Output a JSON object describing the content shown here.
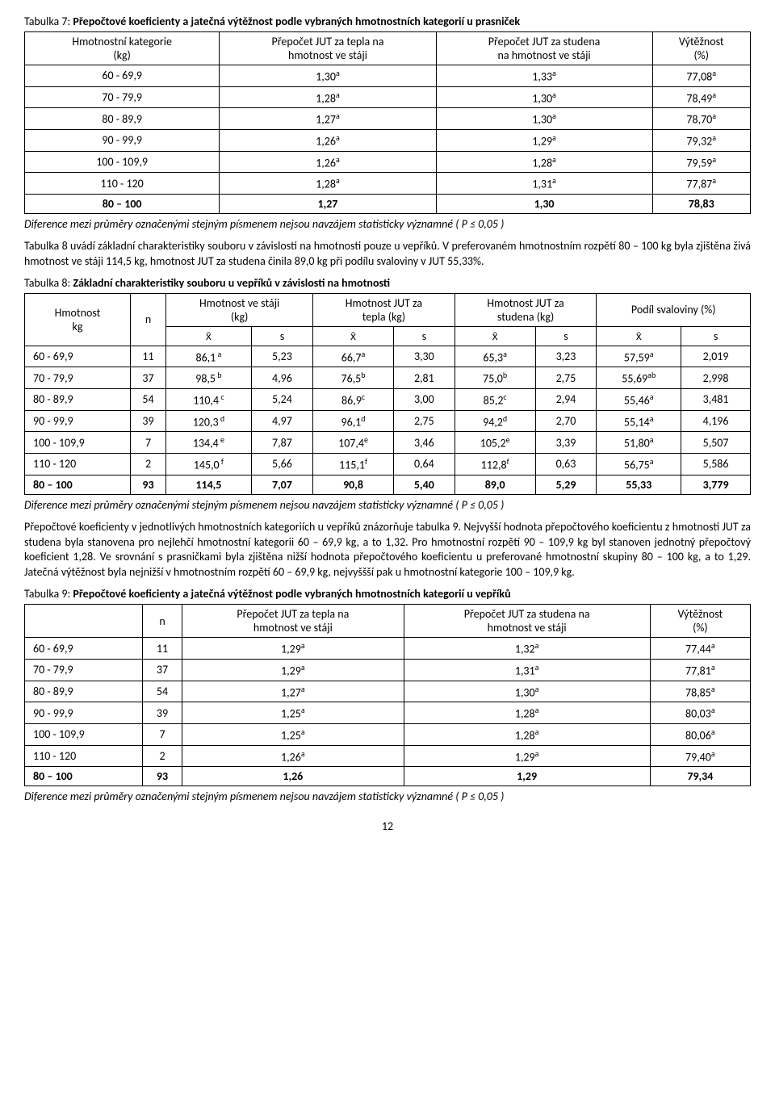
{
  "table7": {
    "title_prefix": "Tabulka 7: ",
    "title": "Přepočtové koeficienty a jatečná výtěžnost podle vybraných hmotnostních kategorií u prasniček",
    "headers": {
      "col1a": "Hmotnostní kategorie",
      "col1b": "(kg)",
      "col2a": "Přepočet JUT za tepla na",
      "col2b": "hmotnost ve stáji",
      "col3a": "Přepočet JUT za studena",
      "col3b": "na hmotnost ve stáji",
      "col4a": "Výtěžnost",
      "col4b": "(%)"
    },
    "rows": [
      {
        "cat": "60 - 69,9",
        "v1": "1,30",
        "s1": "a",
        "v2": "1,33",
        "s2": "a",
        "v3": "77,08",
        "s3": "a"
      },
      {
        "cat": "70 - 79,9",
        "v1": "1,28",
        "s1": "a",
        "v2": "1,30",
        "s2": "a",
        "v3": "78,49",
        "s3": "a"
      },
      {
        "cat": "80 - 89,9",
        "v1": "1,27",
        "s1": "a",
        "v2": "1,30",
        "s2": "a",
        "v3": "78,70",
        "s3": "a"
      },
      {
        "cat": "90 - 99,9",
        "v1": "1,26",
        "s1": "a",
        "v2": "1,29",
        "s2": "a",
        "v3": "79,32",
        "s3": "a"
      },
      {
        "cat": "100 - 109,9",
        "v1": "1,26",
        "s1": "a",
        "v2": "1,28",
        "s2": "a",
        "v3": "79,59",
        "s3": "a"
      },
      {
        "cat": "110 - 120",
        "v1": "1,28",
        "s1": "a",
        "v2": "1,31",
        "s2": "a",
        "v3": "77,87",
        "s3": "a"
      }
    ],
    "summary": {
      "cat": "80 – 100",
      "v1": "1,27",
      "v2": "1,30",
      "v3": "78,83"
    }
  },
  "diff_note": "Diference mezi průměry označenými stejným písmenem nejsou navzájem statisticky významné ( P  ≤  0,05 )",
  "para1": "Tabulka 8 uvádí základní charakteristiky souboru v závislosti na hmotnosti pouze u vepříků. V preferovaném hmotnostním rozpětí 80 – 100 kg byla zjištěna živá hmotnost ve stáji 114,5 kg, hmotnost JUT za studena činila 89,0 kg při podílu svaloviny v JUT 55,33%.",
  "table8": {
    "title_prefix": "Tabulka 8: ",
    "title": "Základní charakteristiky souboru u vepříků v závislosti na hmotnosti",
    "headers": {
      "h1a": "Hmotnost",
      "h1b": "kg",
      "h2": "n",
      "h3a": "Hmotnost ve stáji",
      "h3b": "(kg)",
      "h4a": "Hmotnost JUT za",
      "h4b": "tepla (kg)",
      "h5a": "Hmotnost JUT za",
      "h5b": "studena (kg)",
      "h6": "Podíl svaloviny (%)",
      "xbar": "x̄",
      "s": "s"
    },
    "rows": [
      {
        "cat": "60 - 69,9",
        "n": "11",
        "x1": "86,1",
        "p1": "a",
        "s1": "5,23",
        "x2": "66,7",
        "p2": "a",
        "s2": "3,30",
        "x3": "65,3",
        "p3": "a",
        "s3": "3,23",
        "x4": "57,59",
        "p4": "a",
        "s4": "2,019"
      },
      {
        "cat": "70 - 79,9",
        "n": "37",
        "x1": "98,5",
        "p1": "b",
        "s1": "4,96",
        "x2": "76,5",
        "p2": "b",
        "s2": "2,81",
        "x3": "75,0",
        "p3": "b",
        "s3": "2,75",
        "x4": "55,69",
        "p4": "ab",
        "s4": "2,998"
      },
      {
        "cat": "80 - 89,9",
        "n": "54",
        "x1": "110,4",
        "p1": "c",
        "s1": "5,24",
        "x2": "86,9",
        "p2": "c",
        "s2": "3,00",
        "x3": "85,2",
        "p3": "c",
        "s3": "2,94",
        "x4": "55,46",
        "p4": "a",
        "s4": "3,481"
      },
      {
        "cat": "90 - 99,9",
        "n": "39",
        "x1": "120,3",
        "p1": "d",
        "s1": "4,97",
        "x2": "96,1",
        "p2": "d",
        "s2": "2,75",
        "x3": "94,2",
        "p3": "d",
        "s3": "2,70",
        "x4": "55,14",
        "p4": "a",
        "s4": "4,196"
      },
      {
        "cat": "100 - 109,9",
        "n": "7",
        "x1": "134,4",
        "p1": "e",
        "s1": "7,87",
        "x2": "107,4",
        "p2": "e",
        "s2": "3,46",
        "x3": "105,2",
        "p3": "e",
        "s3": "3,39",
        "x4": "51,80",
        "p4": "a",
        "s4": "5,507"
      },
      {
        "cat": "110 - 120",
        "n": "2",
        "x1": "145,0",
        "p1": "f",
        "s1": "5,66",
        "x2": "115,1",
        "p2": "f",
        "s2": "0,64",
        "x3": "112,8",
        "p3": "f",
        "s3": "0,63",
        "x4": "56,75",
        "p4": "a",
        "s4": "5,586"
      }
    ],
    "summary": {
      "cat": "80 – 100",
      "n": "93",
      "x1": "114,5",
      "s1": "7,07",
      "x2": "90,8",
      "s2": "5,40",
      "x3": "89,0",
      "s3": "5,29",
      "x4": "55,33",
      "s4": "3,779"
    }
  },
  "para2": "Přepočtové koeficienty v jednotlivých hmotnostních kategoriích u vepříků znázorňuje tabulka 9. Nejvyšší hodnota přepočtového koeficientu z hmotnosti JUT za studena byla stanovena pro nejlehčí hmotnostní kategorii 60 – 69,9 kg, a  to 1,32. Pro hmotnostní rozpětí 90 – 109,9 kg byl stanoven jednotný přepočtový koeficient 1,28. Ve srovnání  s prasničkami byla zjištěna nižší hodnota přepočtového koeficientu u preferované hmotnostní skupiny 80 – 100 kg, a to 1,29. Jatečná výtěžnost byla nejnižší v hmotnostním rozpětí 60 – 69,9 kg, nejvyššší pak u hmotnostní kategorie 100 – 109,9 kg.",
  "table9": {
    "title_prefix": "Tabulka 9: ",
    "title": "Přepočtové koeficienty a jatečná výtěžnost podle vybraných hmotnostních kategorií u vepříků",
    "headers": {
      "col1": "",
      "col2": "n",
      "col3a": "Přepočet JUT za tepla na",
      "col3b": "hmotnost ve stáji",
      "col4a": "Přepočet JUT za studena na",
      "col4b": "hmotnost ve stáji",
      "col5a": "Výtěžnost",
      "col5b": "(%)"
    },
    "rows": [
      {
        "cat": "60 - 69,9",
        "n": "11",
        "v1": "1,29",
        "s1": "a",
        "v2": "1,32",
        "s2": "a",
        "v3": "77,44",
        "s3": "a"
      },
      {
        "cat": "70 - 79,9",
        "n": "37",
        "v1": "1,29",
        "s1": "a",
        "v2": "1,31",
        "s2": "a",
        "v3": "77,81",
        "s3": "a"
      },
      {
        "cat": "80 - 89,9",
        "n": "54",
        "v1": "1,27",
        "s1": "a",
        "v2": "1,30",
        "s2": "a",
        "v3": "78,85",
        "s3": "a"
      },
      {
        "cat": "90 - 99,9",
        "n": "39",
        "v1": "1,25",
        "s1": "a",
        "v2": "1,28",
        "s2": "a",
        "v3": "80,03",
        "s3": "a"
      },
      {
        "cat": "100 - 109,9",
        "n": "7",
        "v1": "1,25",
        "s1": "a",
        "v2": "1,28",
        "s2": "a",
        "v3": "80,06",
        "s3": "a"
      },
      {
        "cat": "110 - 120",
        "n": "2",
        "v1": "1,26",
        "s1": "a",
        "v2": "1,29",
        "s2": "a",
        "v3": "79,40",
        "s3": "a"
      }
    ],
    "summary": {
      "cat": "80 – 100",
      "n": "93",
      "v1": "1,26",
      "v2": "1,29",
      "v3": "79,34"
    }
  },
  "page_number": "12"
}
